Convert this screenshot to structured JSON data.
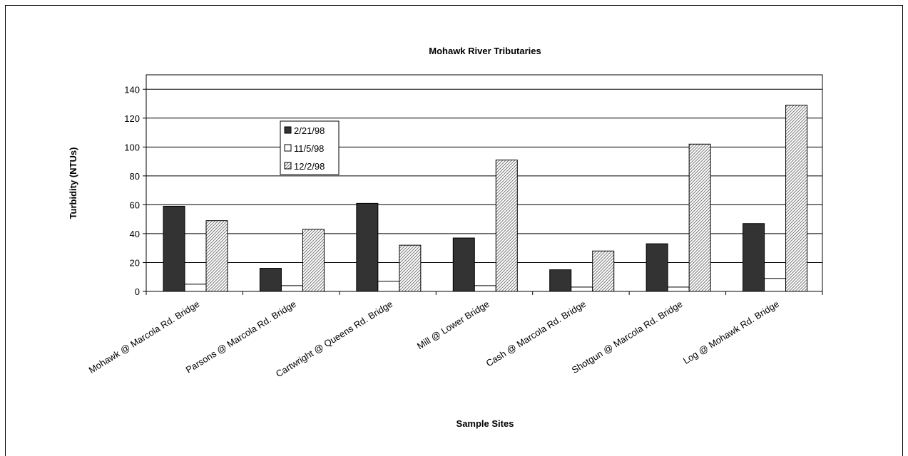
{
  "chart_data": {
    "type": "bar",
    "title": "Mohawk River Tributaries",
    "x_label": "Sample Sites",
    "y_label": "Turbidity (NTUs)",
    "categories": [
      "Mohawk @ Marcola Rd. Bridge",
      "Parsons @ Marcola Rd. Bridge",
      "Cartwright @ Queens Rd. Bridge",
      "Mill @ Lower Bridge",
      "Cash @ Marcola Rd. Bridge",
      "Shotgun @ Marcola Rd. Bridge",
      "Log @ Mohawk Rd. Bridge"
    ],
    "series": [
      {
        "name": "2/21/98",
        "color": "#333333",
        "values": [
          59,
          16,
          61,
          37,
          15,
          33,
          47
        ]
      },
      {
        "name": "11/5/98",
        "color": "#ffffff",
        "values": [
          5,
          4,
          7,
          4,
          3,
          3,
          9
        ]
      },
      {
        "name": "12/2/98",
        "color": "#c8c8c8",
        "hatch": true,
        "values": [
          49,
          43,
          32,
          91,
          28,
          102,
          129
        ]
      }
    ],
    "ylim": [
      0,
      150
    ],
    "yticks": [
      0,
      20,
      40,
      60,
      80,
      100,
      120,
      140
    ],
    "grid": true
  }
}
